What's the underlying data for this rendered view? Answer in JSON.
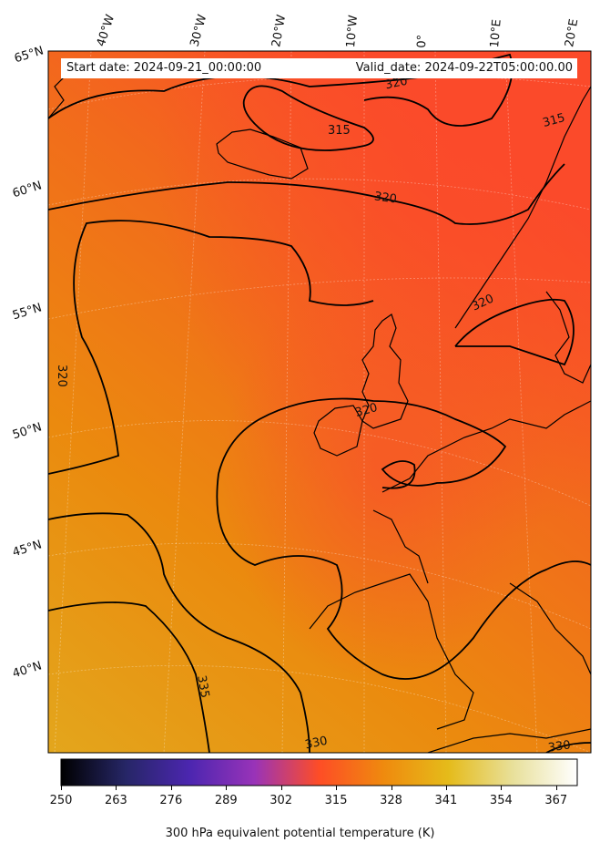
{
  "map": {
    "start_label": "Start date: 2024-09-21_00:00:00",
    "valid_label": "Valid_date: 2024-09-22T05:00:00.00",
    "longitude_labels": [
      "40°W",
      "30°W",
      "20°W",
      "10°W",
      "0°",
      "10°E",
      "20°E"
    ],
    "latitude_labels": [
      "65°N",
      "60°N",
      "55°N",
      "50°N",
      "45°N",
      "40°N"
    ],
    "contour_labels": [
      "320",
      "315",
      "315",
      "320",
      "320",
      "320",
      "320",
      "335",
      "330",
      "330"
    ],
    "colors": {
      "warm_core": "#fb4a2a",
      "mid": "#ef7a10",
      "cool_south": "#e3a61c",
      "contour": "#000000"
    }
  },
  "colorbar": {
    "title": "300 hPa equivalent potential temperature (K)",
    "ticks": [
      "250",
      "263",
      "276",
      "289",
      "302",
      "315",
      "328",
      "341",
      "354",
      "367"
    ],
    "range": [
      250,
      372
    ],
    "colormap": "CMRmap"
  }
}
